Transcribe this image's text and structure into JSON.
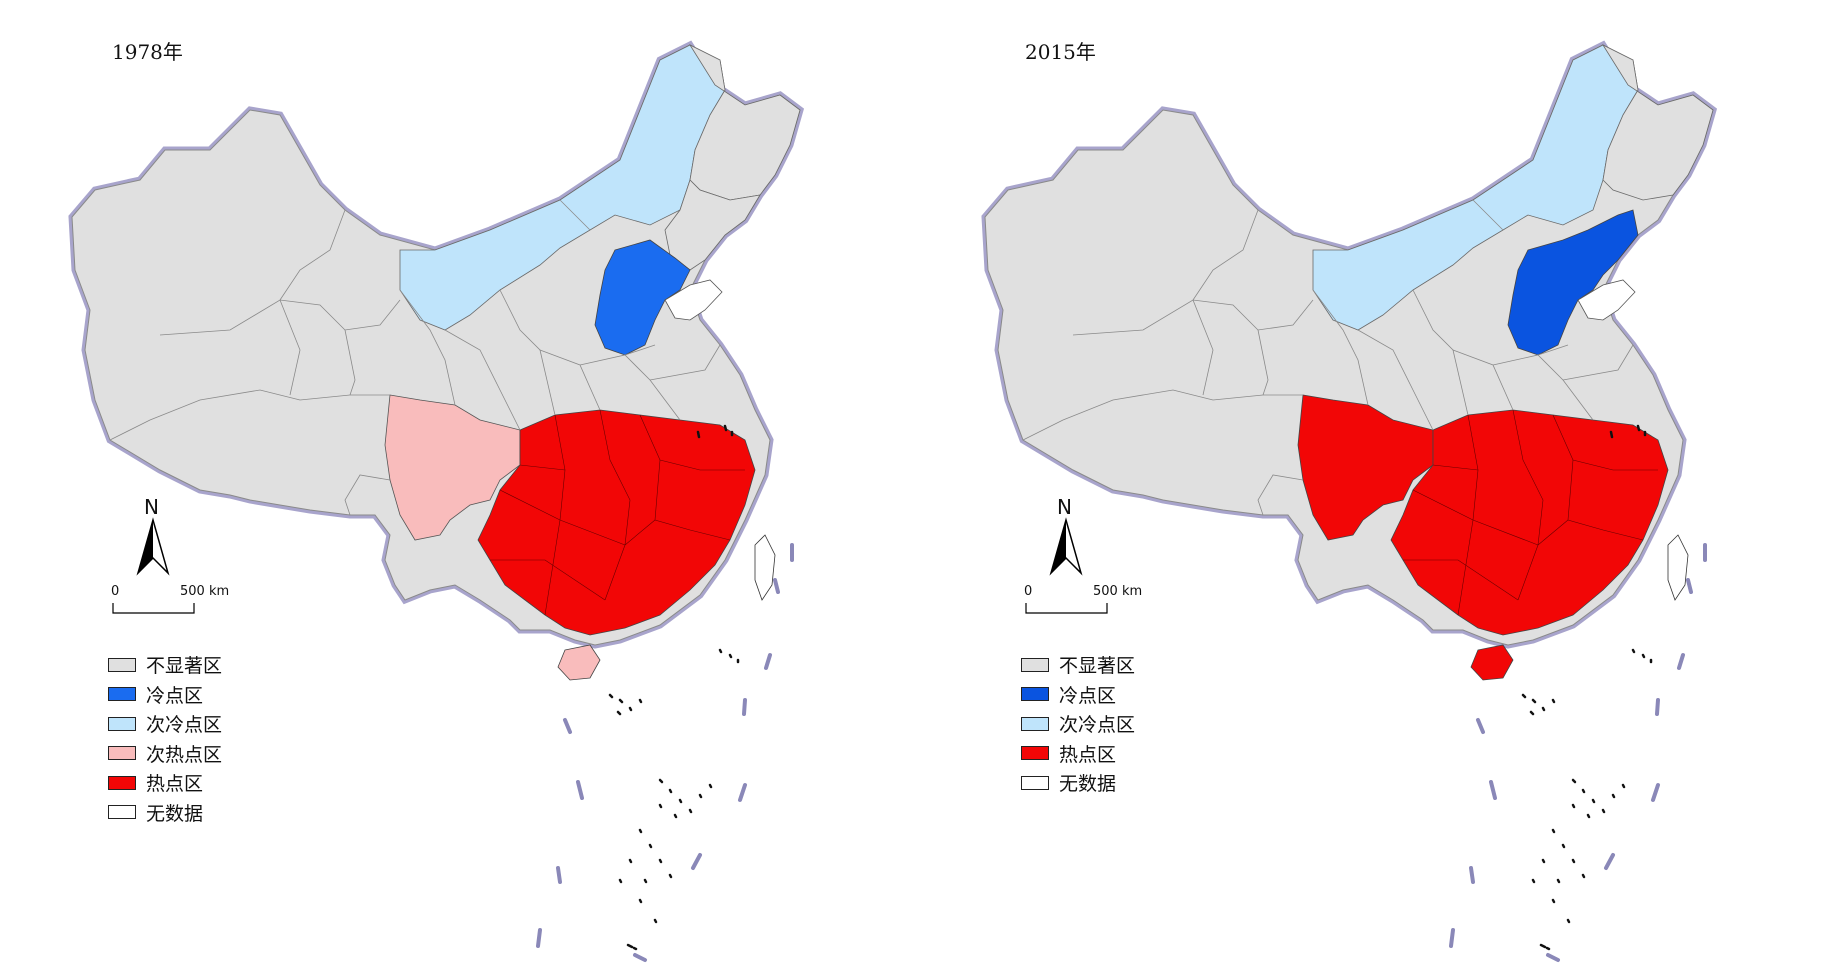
{
  "colors": {
    "not_significant": "#e0e0e0",
    "cold_spot_1978": "#1a6cf0",
    "cold_spot_2015": "#0a54e0",
    "sub_cold_spot": "#bfe4fb",
    "sub_hot_spot": "#f9bcbc",
    "hot_spot": "#f20606",
    "no_data": "#ffffff",
    "border": "#8a8a8a",
    "coastline_halo": "#a8a4cc"
  },
  "panels": [
    {
      "title": "1978年",
      "map_type": "choropleth-hotspot",
      "north_arrow_label": "N",
      "scale_bar": {
        "zero": "0",
        "far": "500 km"
      },
      "legend": [
        {
          "key": "not_significant",
          "label": "不显著区"
        },
        {
          "key": "cold_spot_1978",
          "label": "冷点区"
        },
        {
          "key": "sub_cold_spot",
          "label": "次冷点区"
        },
        {
          "key": "sub_hot_spot",
          "label": "次热点区"
        },
        {
          "key": "hot_spot",
          "label": "热点区"
        },
        {
          "key": "no_data",
          "label": "无数据"
        }
      ],
      "region_classes": {
        "cold_spot": "cold_spot_1978",
        "sichuan": "sub_hot_spot",
        "hainan": "sub_hot_spot"
      }
    },
    {
      "title": "2015年",
      "map_type": "choropleth-hotspot",
      "north_arrow_label": "N",
      "scale_bar": {
        "zero": "0",
        "far": "500 km"
      },
      "legend": [
        {
          "key": "not_significant",
          "label": "不显著区"
        },
        {
          "key": "cold_spot_2015",
          "label": "冷点区"
        },
        {
          "key": "sub_cold_spot",
          "label": "次冷点区"
        },
        {
          "key": "hot_spot",
          "label": "热点区"
        },
        {
          "key": "no_data",
          "label": "无数据"
        }
      ],
      "region_classes": {
        "cold_spot": "cold_spot_2015",
        "sichuan": "hot_spot",
        "hainan": "hot_spot"
      }
    }
  ]
}
